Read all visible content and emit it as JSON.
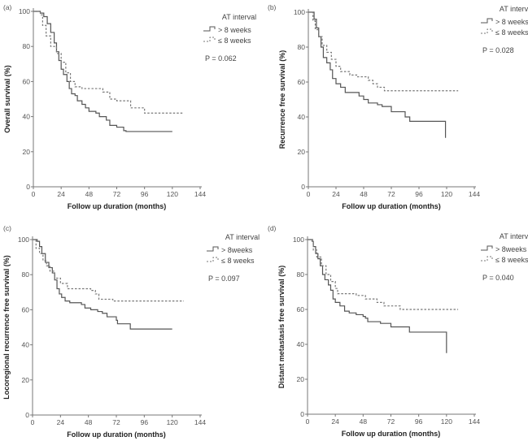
{
  "chart_data": [
    {
      "type": "line",
      "panel_label": "(a)",
      "xlabel": "Follow up duration (months)",
      "ylabel": "Overall survival (%)",
      "xlim": [
        0,
        144
      ],
      "ylim": [
        0,
        100
      ],
      "xticks": [
        0,
        24,
        48,
        72,
        96,
        120,
        144
      ],
      "yticks": [
        0,
        20,
        40,
        60,
        80,
        100
      ],
      "legend_title": "AT interval",
      "legend_placement": "top-right",
      "annotation": "P = 0.062",
      "series": [
        {
          "name": "> 8 weeks",
          "style": "solid",
          "color": "#555555",
          "x": [
            0,
            6,
            9,
            12,
            15,
            18,
            20,
            22,
            24,
            26,
            29,
            31,
            33,
            36,
            38,
            42,
            45,
            48,
            54,
            57,
            63,
            66,
            72,
            78,
            80,
            120
          ],
          "y": [
            100,
            99,
            97,
            93,
            88,
            82,
            77,
            72,
            67,
            64,
            60,
            56,
            53,
            52,
            49,
            47,
            45,
            43,
            42,
            40,
            38,
            35,
            34,
            32,
            31.5,
            31.5
          ]
        },
        {
          "name": "≤ 8 weeks",
          "style": "dashed",
          "color": "#777777",
          "x": [
            0,
            6,
            8,
            11,
            15,
            20,
            24,
            28,
            32,
            36,
            42,
            55,
            60,
            66,
            72,
            84,
            96,
            130
          ],
          "y": [
            100,
            98,
            92,
            86,
            80,
            76,
            71,
            65,
            60,
            57,
            56,
            56,
            54,
            50,
            49,
            45,
            42,
            42
          ]
        }
      ]
    },
    {
      "type": "line",
      "panel_label": "(b)",
      "xlabel": "Follow up duration (months)",
      "ylabel": "Recurrence free survival (%)",
      "xlim": [
        0,
        144
      ],
      "ylim": [
        0,
        100
      ],
      "xticks": [
        0,
        24,
        48,
        72,
        96,
        120,
        144
      ],
      "yticks": [
        0,
        20,
        40,
        60,
        80,
        100
      ],
      "legend_title": "AT interval",
      "legend_placement": "top-right",
      "annotation": "P = 0.028",
      "series": [
        {
          "name": "> 8 weeks",
          "style": "solid",
          "color": "#555555",
          "x": [
            0,
            4,
            5,
            7,
            9,
            11,
            13,
            16,
            19,
            21,
            24,
            28,
            32,
            42,
            44,
            48,
            52,
            60,
            64,
            72,
            84,
            88,
            119,
            119
          ],
          "y": [
            100,
            100,
            96,
            91,
            86,
            80,
            74,
            71,
            67,
            62,
            59,
            57,
            54,
            54,
            52,
            50,
            48,
            47,
            46,
            43,
            40,
            37.5,
            37.5,
            28
          ]
        },
        {
          "name": "≤ 8 weeks",
          "style": "dashed",
          "color": "#777777",
          "x": [
            0,
            4,
            6,
            9,
            12,
            16,
            20,
            24,
            28,
            36,
            42,
            49,
            52,
            56,
            60,
            66,
            130
          ],
          "y": [
            100,
            95,
            90,
            86,
            81,
            77,
            73,
            69,
            66,
            64,
            63,
            63,
            61,
            59,
            57,
            55,
            55
          ]
        }
      ]
    },
    {
      "type": "line",
      "panel_label": "(c)",
      "xlabel": "Follow up duration (months)",
      "ylabel": "Locoregional recurrence free survival (%)",
      "xlim": [
        0,
        144
      ],
      "ylim": [
        0,
        100
      ],
      "xticks": [
        0,
        24,
        48,
        72,
        96,
        120,
        144
      ],
      "yticks": [
        0,
        20,
        40,
        60,
        80,
        100
      ],
      "legend_title": "AT interval",
      "legend_placement": "top-right",
      "annotation": "P = 0.097",
      "series": [
        {
          "name": "> 8weeks",
          "style": "solid",
          "color": "#555555",
          "x": [
            0,
            4,
            6,
            8,
            11,
            14,
            17,
            19,
            21,
            23,
            25,
            28,
            32,
            42,
            45,
            50,
            56,
            60,
            64,
            72,
            73,
            84,
            120
          ],
          "y": [
            100,
            99,
            96,
            92,
            87,
            84,
            81,
            77,
            72,
            69,
            67,
            65,
            64,
            63,
            61,
            60,
            59,
            58,
            56,
            54,
            52,
            49,
            49
          ]
        },
        {
          "name": "≤ 8 weeks",
          "style": "dashed",
          "color": "#777777",
          "x": [
            0,
            3,
            6,
            9,
            12,
            15,
            19,
            24,
            30,
            42,
            50,
            54,
            57,
            64,
            69,
            130
          ],
          "y": [
            100,
            95,
            92,
            88,
            85,
            82,
            78,
            75,
            72,
            72,
            71,
            69,
            66,
            66,
            65,
            65
          ]
        }
      ]
    },
    {
      "type": "line",
      "panel_label": "(d)",
      "xlabel": "Follow up duration (months)",
      "ylabel": "Distant metastasis free survival (%)",
      "xlim": [
        0,
        144
      ],
      "ylim": [
        0,
        100
      ],
      "xticks": [
        0,
        24,
        48,
        72,
        96,
        120,
        144
      ],
      "yticks": [
        0,
        20,
        40,
        60,
        80,
        100
      ],
      "legend_title": "AT interval",
      "legend_placement": "top-right",
      "annotation": "P = 0.040",
      "series": [
        {
          "name": "> 8weeks",
          "style": "solid",
          "color": "#555555",
          "x": [
            0,
            4,
            5,
            7,
            9,
            11,
            13,
            15,
            18,
            20,
            22,
            24,
            28,
            32,
            36,
            42,
            48,
            50,
            52,
            60,
            63,
            72,
            86,
            88,
            120,
            120
          ],
          "y": [
            100,
            99,
            96,
            92,
            89,
            85,
            80,
            77,
            74,
            71,
            66,
            64,
            62,
            59,
            58,
            57,
            56,
            55,
            53,
            53,
            52,
            50,
            50,
            47,
            47,
            35
          ]
        },
        {
          "name": "≤ 8 weeks",
          "style": "dashed",
          "color": "#777777",
          "x": [
            0,
            5,
            8,
            12,
            16,
            20,
            24,
            26,
            40,
            42,
            48,
            50,
            60,
            66,
            72,
            80,
            130
          ],
          "y": [
            100,
            94,
            90,
            85,
            80,
            76,
            72,
            69,
            69,
            68,
            68,
            66,
            64,
            62,
            62,
            60,
            60
          ]
        }
      ]
    }
  ]
}
